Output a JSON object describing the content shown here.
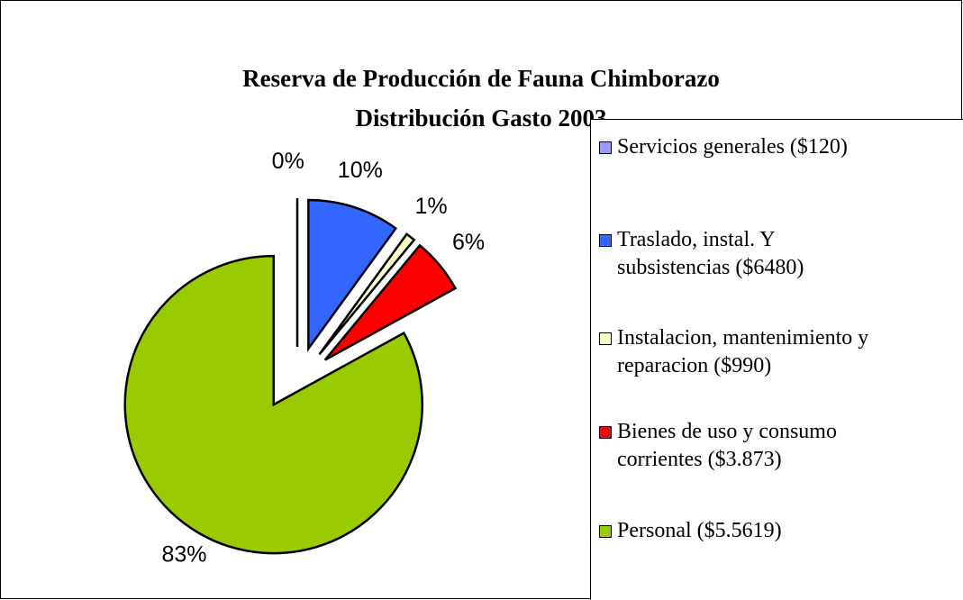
{
  "chart_data": {
    "type": "pie",
    "title": "Reserva de Producción de Fauna Chimborazo",
    "subtitle": "Distribución Gasto 2003",
    "categories": [
      "Servicios generales ($120)",
      "Traslado, instal. Y subsistencias ($6480)",
      "Instalacion, mantenimiento y reparacion ($990)",
      "Bienes de uso y consumo corrientes ($3.873)",
      "Personal ($5.5619)"
    ],
    "values": [
      0,
      10,
      1,
      6,
      83
    ],
    "value_labels": [
      "0%",
      "10%",
      "1%",
      "6%",
      "83%"
    ],
    "colors": [
      "#9999ff",
      "#3366ff",
      "#ffffcc",
      "#ff0000",
      "#99cc00"
    ],
    "legend": "right"
  }
}
